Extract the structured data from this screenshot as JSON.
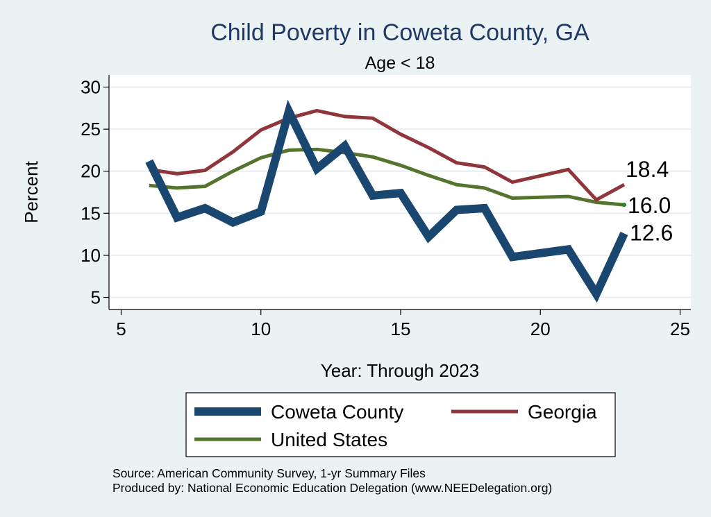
{
  "chart_data": {
    "type": "line",
    "title": "Child Poverty in Coweta County, GA",
    "subtitle": "Age < 18",
    "xlabel": "Year: Through 2023",
    "ylabel": "Percent",
    "xlim": [
      5,
      25
    ],
    "ylim": [
      5,
      30
    ],
    "xticks": [
      5,
      10,
      15,
      20,
      25
    ],
    "yticks": [
      5,
      10,
      15,
      20,
      25,
      30
    ],
    "grid": true,
    "legend_position": "bottom",
    "series": [
      {
        "name": "Coweta County",
        "color": "#1a476f",
        "x": [
          6,
          7,
          8,
          9,
          10,
          11,
          12,
          13,
          14,
          15,
          16,
          17,
          18,
          19,
          21,
          22,
          23
        ],
        "values": [
          21.2,
          14.5,
          15.6,
          13.9,
          15.2,
          27.1,
          20.3,
          23.0,
          17.1,
          17.4,
          12.2,
          15.4,
          15.6,
          9.8,
          10.7,
          5.4,
          12.6
        ],
        "end_label": "12.6"
      },
      {
        "name": "Georgia",
        "color": "#90353b",
        "x": [
          6,
          7,
          8,
          9,
          10,
          11,
          12,
          13,
          14,
          15,
          16,
          17,
          18,
          19,
          21,
          22,
          23
        ],
        "values": [
          20.2,
          19.7,
          20.1,
          22.3,
          24.9,
          26.3,
          27.2,
          26.5,
          26.3,
          24.4,
          22.8,
          21.0,
          20.5,
          18.7,
          20.2,
          16.6,
          18.4
        ],
        "end_label": "18.4"
      },
      {
        "name": "United States",
        "color": "#55752f",
        "x": [
          6,
          7,
          8,
          9,
          10,
          11,
          12,
          13,
          14,
          15,
          16,
          17,
          18,
          19,
          21,
          22,
          23
        ],
        "values": [
          18.3,
          18.0,
          18.2,
          20.0,
          21.6,
          22.5,
          22.6,
          22.2,
          21.7,
          20.7,
          19.5,
          18.4,
          18.0,
          16.8,
          17.0,
          16.3,
          16.0
        ],
        "end_label": "16.0"
      }
    ],
    "source_lines": [
      "Source: American Community Survey, 1-yr Summary Files",
      "Produced by: National Economic Education Delegation (www.NEEDelegation.org)"
    ]
  }
}
